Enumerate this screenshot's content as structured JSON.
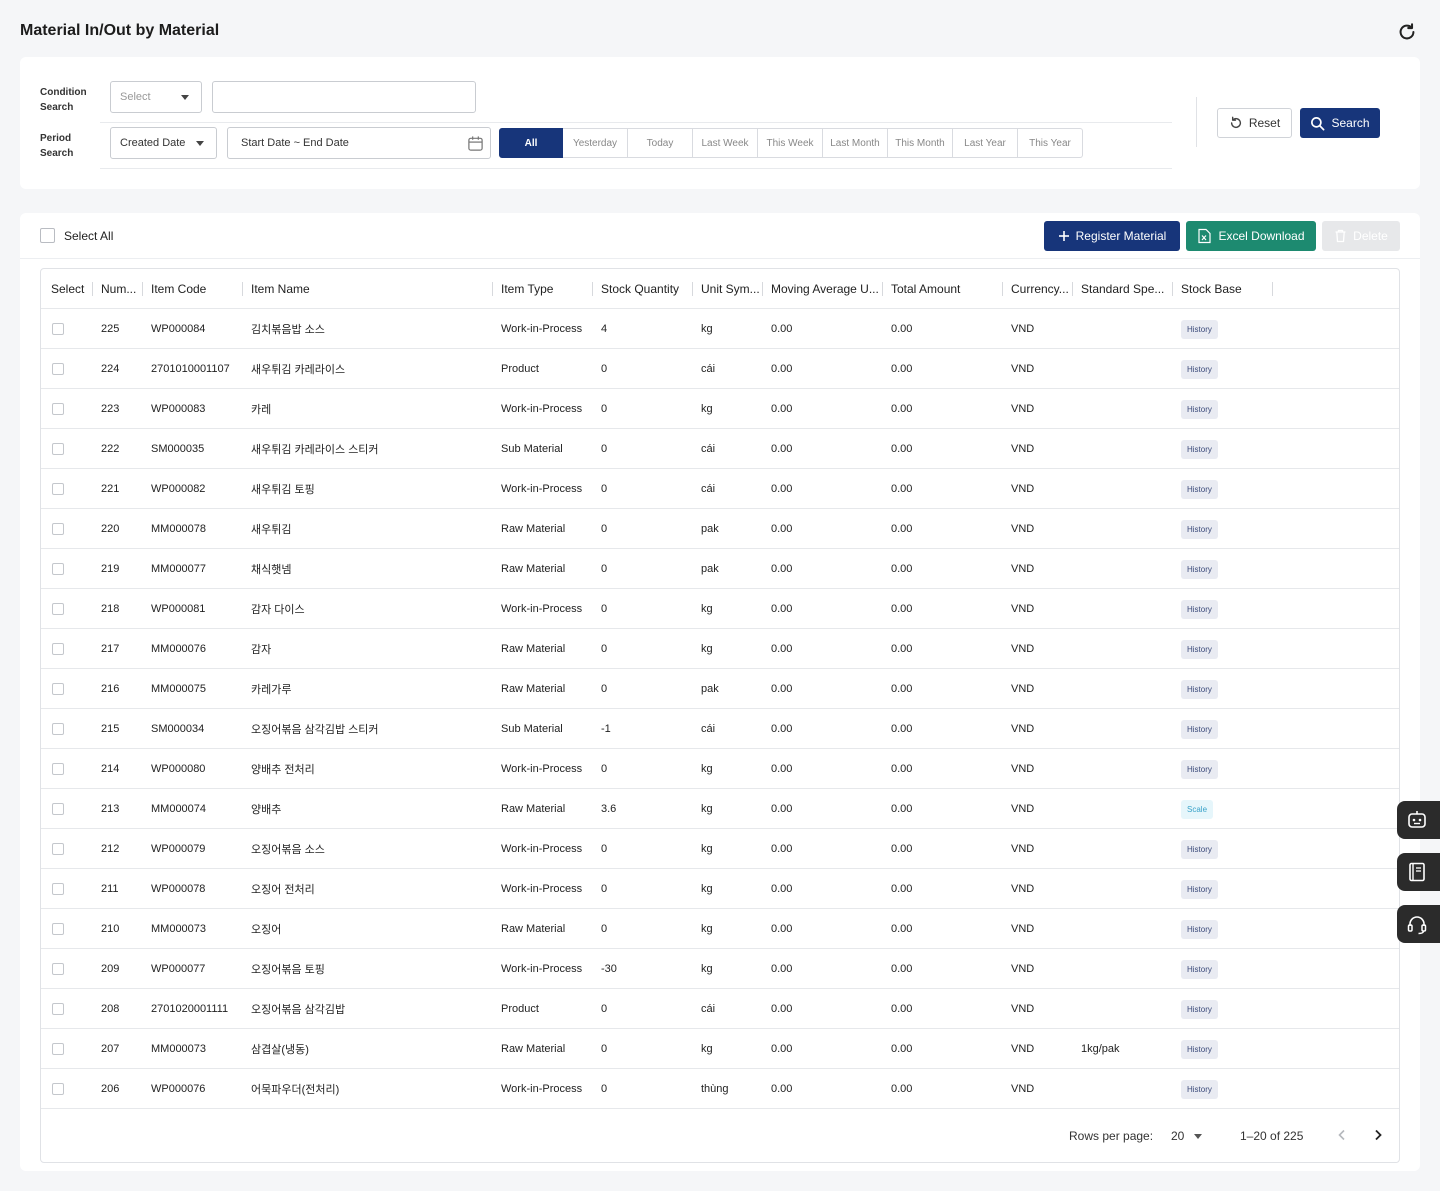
{
  "page": {
    "title": "Material In/Out by Material"
  },
  "filters": {
    "condition_label_1": "Condition",
    "condition_label_2": "Search",
    "condition_select_placeholder": "Select",
    "period_label_1": "Period",
    "period_label_2": "Search",
    "period_select_value": "Created Date",
    "date_range_value": "Start Date ~ End Date",
    "ranges": [
      "All",
      "Yesterday",
      "Today",
      "Last Week",
      "This Week",
      "Last Month",
      "This Month",
      "Last Year",
      "This Year"
    ],
    "active_range": "All",
    "reset_label": "Reset",
    "search_label": "Search"
  },
  "toolbar": {
    "select_all_label": "Select All",
    "register_label": "Register Material",
    "excel_label": "Excel Download",
    "delete_label": "Delete"
  },
  "table": {
    "columns": [
      "Select",
      "Num...",
      "Item Code",
      "Item Name",
      "Item Type",
      "Stock Quantity",
      "Unit Sym...",
      "Moving Average U...",
      "Total Amount",
      "Currency...",
      "Standard Spe...",
      "Stock Base"
    ],
    "rows": [
      {
        "num": "225",
        "code": "WP000084",
        "name": "김치볶음밥 소스",
        "type": "Work-in-Process",
        "qty": "4",
        "unit": "kg",
        "avg": "0.00",
        "total": "0.00",
        "currency": "VND",
        "spec": "",
        "base": "History"
      },
      {
        "num": "224",
        "code": "2701010001107",
        "name": "새우튀김 카레라이스",
        "type": "Product",
        "qty": "0",
        "unit": "cái",
        "avg": "0.00",
        "total": "0.00",
        "currency": "VND",
        "spec": "",
        "base": "History"
      },
      {
        "num": "223",
        "code": "WP000083",
        "name": "카레",
        "type": "Work-in-Process",
        "qty": "0",
        "unit": "kg",
        "avg": "0.00",
        "total": "0.00",
        "currency": "VND",
        "spec": "",
        "base": "History"
      },
      {
        "num": "222",
        "code": "SM000035",
        "name": "새우튀김 카레라이스 스티커",
        "type": "Sub Material",
        "qty": "0",
        "unit": "cái",
        "avg": "0.00",
        "total": "0.00",
        "currency": "VND",
        "spec": "",
        "base": "History"
      },
      {
        "num": "221",
        "code": "WP000082",
        "name": "새우튀김 토핑",
        "type": "Work-in-Process",
        "qty": "0",
        "unit": "cái",
        "avg": "0.00",
        "total": "0.00",
        "currency": "VND",
        "spec": "",
        "base": "History"
      },
      {
        "num": "220",
        "code": "MM000078",
        "name": "새우튀김",
        "type": "Raw Material",
        "qty": "0",
        "unit": "pak",
        "avg": "0.00",
        "total": "0.00",
        "currency": "VND",
        "spec": "",
        "base": "History"
      },
      {
        "num": "219",
        "code": "MM000077",
        "name": "채식햇넴",
        "type": "Raw Material",
        "qty": "0",
        "unit": "pak",
        "avg": "0.00",
        "total": "0.00",
        "currency": "VND",
        "spec": "",
        "base": "History"
      },
      {
        "num": "218",
        "code": "WP000081",
        "name": "감자 다이스",
        "type": "Work-in-Process",
        "qty": "0",
        "unit": "kg",
        "avg": "0.00",
        "total": "0.00",
        "currency": "VND",
        "spec": "",
        "base": "History"
      },
      {
        "num": "217",
        "code": "MM000076",
        "name": "감자",
        "type": "Raw Material",
        "qty": "0",
        "unit": "kg",
        "avg": "0.00",
        "total": "0.00",
        "currency": "VND",
        "spec": "",
        "base": "History"
      },
      {
        "num": "216",
        "code": "MM000075",
        "name": "카레가루",
        "type": "Raw Material",
        "qty": "0",
        "unit": "pak",
        "avg": "0.00",
        "total": "0.00",
        "currency": "VND",
        "spec": "",
        "base": "History"
      },
      {
        "num": "215",
        "code": "SM000034",
        "name": "오징어볶음 삼각김밥 스티커",
        "type": "Sub Material",
        "qty": "-1",
        "unit": "cái",
        "avg": "0.00",
        "total": "0.00",
        "currency": "VND",
        "spec": "",
        "base": "History"
      },
      {
        "num": "214",
        "code": "WP000080",
        "name": "양배추 전처리",
        "type": "Work-in-Process",
        "qty": "0",
        "unit": "kg",
        "avg": "0.00",
        "total": "0.00",
        "currency": "VND",
        "spec": "",
        "base": "History"
      },
      {
        "num": "213",
        "code": "MM000074",
        "name": "양배추",
        "type": "Raw Material",
        "qty": "3.6",
        "unit": "kg",
        "avg": "0.00",
        "total": "0.00",
        "currency": "VND",
        "spec": "",
        "base": "Scale"
      },
      {
        "num": "212",
        "code": "WP000079",
        "name": "오징어볶음 소스",
        "type": "Work-in-Process",
        "qty": "0",
        "unit": "kg",
        "avg": "0.00",
        "total": "0.00",
        "currency": "VND",
        "spec": "",
        "base": "History"
      },
      {
        "num": "211",
        "code": "WP000078",
        "name": "오징어 전처리",
        "type": "Work-in-Process",
        "qty": "0",
        "unit": "kg",
        "avg": "0.00",
        "total": "0.00",
        "currency": "VND",
        "spec": "",
        "base": "History"
      },
      {
        "num": "210",
        "code": "MM000073",
        "name": "오징어",
        "type": "Raw Material",
        "qty": "0",
        "unit": "kg",
        "avg": "0.00",
        "total": "0.00",
        "currency": "VND",
        "spec": "",
        "base": "History"
      },
      {
        "num": "209",
        "code": "WP000077",
        "name": "오징어볶음 토핑",
        "type": "Work-in-Process",
        "qty": "-30",
        "unit": "kg",
        "avg": "0.00",
        "total": "0.00",
        "currency": "VND",
        "spec": "",
        "base": "History"
      },
      {
        "num": "208",
        "code": "2701020001111",
        "name": "오징어볶음 삼각김밥",
        "type": "Product",
        "qty": "0",
        "unit": "cái",
        "avg": "0.00",
        "total": "0.00",
        "currency": "VND",
        "spec": "",
        "base": "History"
      },
      {
        "num": "207",
        "code": "MM000073",
        "name": "삼겹살(냉동)",
        "type": "Raw Material",
        "qty": "0",
        "unit": "kg",
        "avg": "0.00",
        "total": "0.00",
        "currency": "VND",
        "spec": "1kg/pak",
        "base": "History"
      },
      {
        "num": "206",
        "code": "WP000076",
        "name": "어묵파우더(전처리)",
        "type": "Work-in-Process",
        "qty": "0",
        "unit": "thùng",
        "avg": "0.00",
        "total": "0.00",
        "currency": "VND",
        "spec": "",
        "base": "History"
      }
    ]
  },
  "pagination": {
    "rows_per_page_label": "Rows per page:",
    "rows_per_page_value": "20",
    "range_text": "1–20 of 225"
  },
  "colors": {
    "primary": "#17357a",
    "excel": "#1d8a70",
    "delete_disabled": "#e7e8ea",
    "badge_history_bg": "#e9ebf2",
    "badge_scale_bg": "#e6f6fb"
  },
  "icons": [
    "refresh-icon",
    "calendar-icon",
    "reset-icon",
    "search-icon",
    "plus-icon",
    "excel-icon",
    "trash-icon",
    "chevron-left-icon",
    "chevron-right-icon",
    "chatbot-icon",
    "manual-book-icon",
    "headset-icon"
  ]
}
